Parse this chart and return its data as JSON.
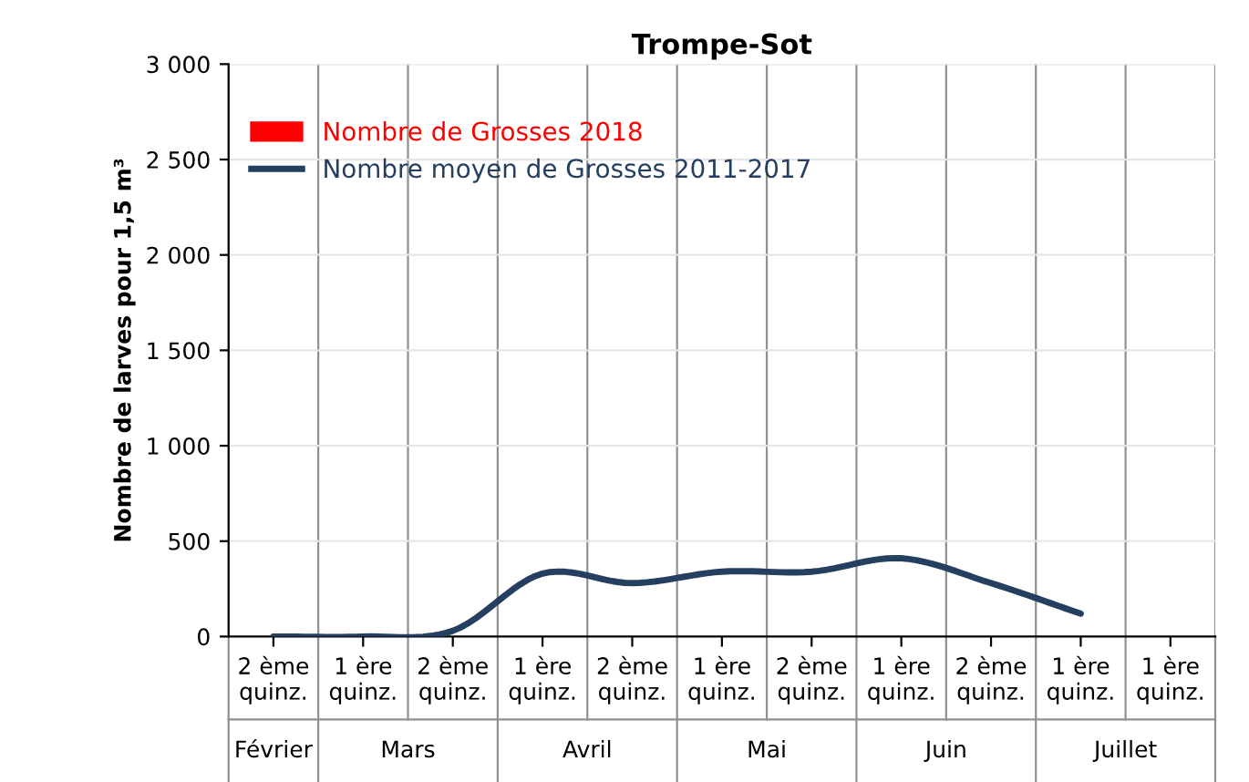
{
  "chart_data": {
    "type": "bar",
    "title": "Trompe-Sot",
    "ylabel": "Nombre de larves pour 1,5 m³",
    "categories": [
      "2 ème quinz.",
      "1 ère quinz.",
      "2 ème quinz.",
      "1 ère quinz.",
      "2 ème quinz.",
      "1 ère quinz.",
      "2 ème quinz.",
      "1 ère quinz.",
      "2 ème quinz.",
      "1 ère quinz.",
      "1 ère quinz."
    ],
    "series": [
      {
        "name": "Nombre de Grosses 2018",
        "color": "#ff0000",
        "values": [
          null,
          null,
          null,
          null,
          null,
          null,
          null,
          null,
          null,
          null,
          null
        ]
      },
      {
        "name": "Nombre moyen de Grosses 2011-2017",
        "type": "line",
        "color": "#243f60",
        "values": [
          0,
          0,
          30,
          330,
          280,
          340,
          340,
          410,
          280,
          120,
          null
        ]
      }
    ],
    "ylim": [
      0,
      3000
    ],
    "yticks": [
      0,
      {
        "value": 500,
        "label": "500"
      },
      {
        "value": 1000,
        "label": "1 000"
      },
      {
        "value": 1500,
        "label": "1 500"
      },
      {
        "value": 2000,
        "label": "2 000"
      },
      {
        "value": 2500,
        "label": "2 500"
      },
      {
        "value": 3000,
        "label": "3 000"
      }
    ],
    "grid": "y",
    "legend": "top left",
    "marker": "none",
    "line_style": "solid",
    "annotations": [
      "Février",
      "Mars",
      "Avril",
      "Mai",
      "Juin",
      "Juillet"
    ]
  }
}
